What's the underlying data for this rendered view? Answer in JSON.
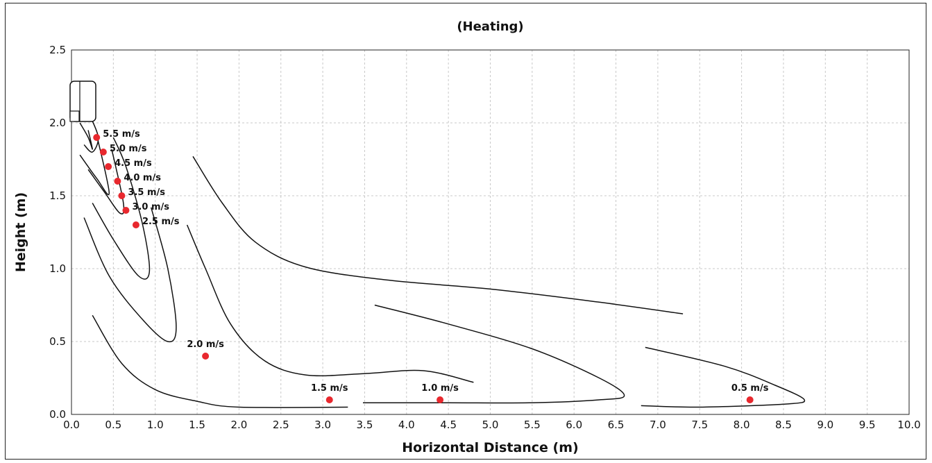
{
  "chart_data": {
    "type": "scatter",
    "title": "(Heating)",
    "xlabel": "Horizontal Distance (m)",
    "ylabel": "Height (m)",
    "xlim": [
      0,
      10
    ],
    "ylim": [
      0,
      2.5
    ],
    "x_ticks": [
      "0.0",
      "0.5",
      "1.0",
      "1.5",
      "2.0",
      "2.5",
      "3.0",
      "3.5",
      "4.0",
      "4.5",
      "5.0",
      "5.5",
      "6.0",
      "6.5",
      "7.0",
      "7.5",
      "8.0",
      "8.5",
      "9.0",
      "9.5",
      "10.0"
    ],
    "y_ticks": [
      "0.0",
      "0.5",
      "1.0",
      "1.5",
      "2.0",
      "2.5"
    ],
    "grid": true,
    "marker_color": "#e8282e",
    "points": [
      {
        "x": 0.3,
        "y": 1.9,
        "label": "5.5 m/s"
      },
      {
        "x": 0.38,
        "y": 1.8,
        "label": "5.0 m/s"
      },
      {
        "x": 0.44,
        "y": 1.7,
        "label": "4.5 m/s"
      },
      {
        "x": 0.55,
        "y": 1.6,
        "label": "4.0 m/s"
      },
      {
        "x": 0.6,
        "y": 1.5,
        "label": "3.5 m/s"
      },
      {
        "x": 0.65,
        "y": 1.4,
        "label": "3.0 m/s"
      },
      {
        "x": 0.77,
        "y": 1.3,
        "label": "2.5 m/s"
      },
      {
        "x": 1.6,
        "y": 0.4,
        "label": "2.0 m/s"
      },
      {
        "x": 3.08,
        "y": 0.1,
        "label": "1.5 m/s"
      },
      {
        "x": 4.4,
        "y": 0.1,
        "label": "1.0 m/s"
      },
      {
        "x": 8.1,
        "y": 0.1,
        "label": "0.5 m/s"
      }
    ],
    "contours": [
      [
        [
          0.1,
          2.0
        ],
        [
          0.2,
          1.9
        ],
        [
          0.25,
          1.82
        ],
        [
          0.2,
          1.95
        ]
      ],
      [
        [
          0.15,
          1.85
        ],
        [
          0.25,
          1.8
        ],
        [
          0.32,
          1.9
        ],
        [
          0.22,
          2.05
        ]
      ],
      [
        [
          0.1,
          1.78
        ],
        [
          0.3,
          1.62
        ],
        [
          0.45,
          1.52
        ],
        [
          0.3,
          1.92
        ]
      ],
      [
        [
          0.2,
          1.68
        ],
        [
          0.4,
          1.52
        ],
        [
          0.58,
          1.38
        ],
        [
          0.62,
          1.45
        ],
        [
          0.48,
          1.82
        ]
      ],
      [
        [
          0.25,
          1.45
        ],
        [
          0.5,
          1.2
        ],
        [
          0.8,
          0.95
        ],
        [
          0.93,
          0.98
        ],
        [
          0.85,
          1.3
        ],
        [
          0.65,
          1.7
        ],
        [
          0.5,
          1.9
        ]
      ],
      [
        [
          0.15,
          1.35
        ],
        [
          0.45,
          0.95
        ],
        [
          0.85,
          0.65
        ],
        [
          1.15,
          0.5
        ],
        [
          1.25,
          0.6
        ],
        [
          1.15,
          1.0
        ],
        [
          0.95,
          1.42
        ]
      ],
      [
        [
          0.25,
          0.68
        ],
        [
          0.6,
          0.35
        ],
        [
          1.0,
          0.17
        ],
        [
          1.5,
          0.09
        ],
        [
          2.0,
          0.05
        ],
        [
          3.3,
          0.05
        ]
      ],
      [
        [
          1.38,
          1.3
        ],
        [
          1.6,
          1.0
        ],
        [
          1.9,
          0.62
        ],
        [
          2.3,
          0.37
        ],
        [
          2.8,
          0.27
        ],
        [
          3.5,
          0.28
        ],
        [
          4.2,
          0.3
        ],
        [
          4.8,
          0.22
        ]
      ],
      [
        [
          3.48,
          0.08
        ],
        [
          4.5,
          0.08
        ],
        [
          5.5,
          0.08
        ],
        [
          6.3,
          0.1
        ],
        [
          6.6,
          0.13
        ],
        [
          6.3,
          0.25
        ],
        [
          5.5,
          0.45
        ],
        [
          4.5,
          0.62
        ],
        [
          3.62,
          0.75
        ]
      ],
      [
        [
          6.8,
          0.06
        ],
        [
          7.5,
          0.05
        ],
        [
          8.5,
          0.07
        ],
        [
          8.75,
          0.1
        ],
        [
          8.4,
          0.2
        ],
        [
          7.8,
          0.33
        ],
        [
          6.85,
          0.46
        ]
      ],
      [
        [
          1.45,
          1.77
        ],
        [
          1.8,
          1.45
        ],
        [
          2.2,
          1.18
        ],
        [
          2.8,
          1.01
        ],
        [
          3.8,
          0.92
        ],
        [
          5.0,
          0.86
        ],
        [
          6.3,
          0.77
        ],
        [
          7.3,
          0.69
        ]
      ]
    ]
  }
}
